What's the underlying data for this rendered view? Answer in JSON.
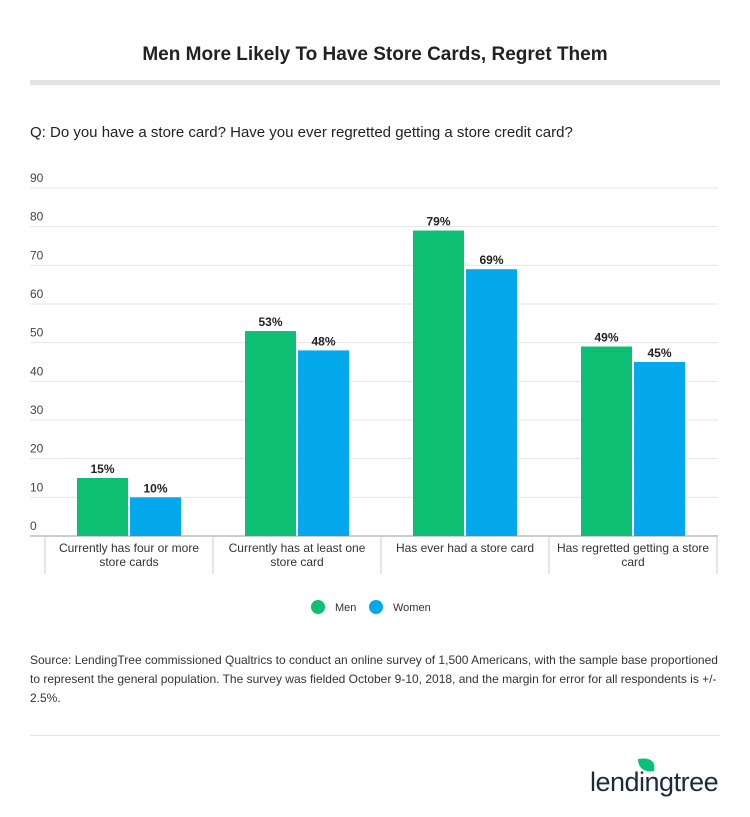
{
  "title": "Men More Likely To Have Store Cards, Regret Them",
  "question": "Q:  Do you have a store card? Have you ever regretted getting a store credit card?",
  "source": "Source: LendingTree commissioned Qualtrics to conduct an online survey of 1,500 Americans, with the sample base proportioned to represent the general population. The survey was fielded October 9-10, 2018, and the margin for error for all respondents is +/- 2.5%.",
  "logo_text": "lendingtree",
  "chart_data": {
    "type": "bar",
    "categories": [
      [
        "Currently has four or more",
        "store cards"
      ],
      [
        "Currently has at least one",
        "store card"
      ],
      [
        "Has ever had a store card"
      ],
      [
        "Has regretted getting a store",
        "card"
      ]
    ],
    "series": [
      {
        "name": "Men",
        "color": "#0cbf73",
        "values": [
          15,
          53,
          79,
          49
        ]
      },
      {
        "name": "Women",
        "color": "#04a8ec",
        "values": [
          10,
          48,
          69,
          45
        ]
      }
    ],
    "data_label_suffix": "%",
    "ylim": [
      0,
      90
    ],
    "yticks": [
      0,
      10,
      20,
      30,
      40,
      50,
      60,
      70,
      80,
      90
    ],
    "grid": true,
    "legend": "bottom"
  }
}
